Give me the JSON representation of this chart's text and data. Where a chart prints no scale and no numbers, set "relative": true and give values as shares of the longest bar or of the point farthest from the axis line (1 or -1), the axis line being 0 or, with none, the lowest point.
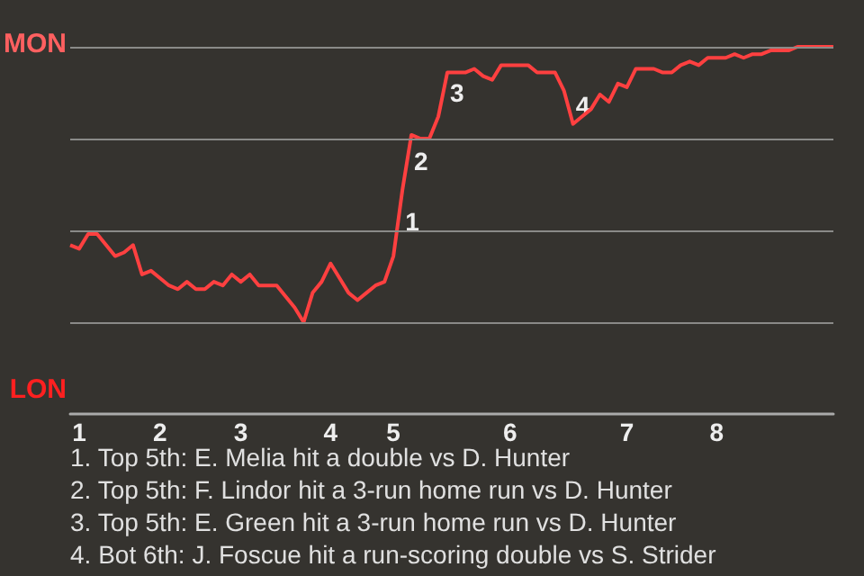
{
  "chart_data": {
    "type": "line",
    "categories": [
      null,
      "1",
      null,
      null,
      null,
      null,
      null,
      null,
      null,
      null,
      "2",
      null,
      null,
      null,
      null,
      null,
      null,
      null,
      null,
      "3",
      null,
      null,
      null,
      null,
      null,
      null,
      null,
      null,
      null,
      "4",
      null,
      null,
      null,
      null,
      null,
      null,
      "5",
      null,
      null,
      null,
      null,
      null,
      null,
      null,
      null,
      null,
      null,
      null,
      null,
      "6",
      null,
      null,
      null,
      null,
      null,
      null,
      null,
      null,
      null,
      null,
      null,
      null,
      "7",
      null,
      null,
      null,
      null,
      null,
      null,
      null,
      null,
      null,
      "8",
      null,
      null,
      null,
      null,
      null,
      null,
      null,
      null,
      null,
      null,
      null,
      null,
      null
    ],
    "relative": true,
    "series": [
      {
        "color": "#ff4040",
        "values": [
          0.46,
          0.45,
          0.49,
          0.49,
          0.46,
          0.43,
          0.44,
          0.46,
          0.38,
          0.39,
          0.37,
          0.35,
          0.34,
          0.36,
          0.34,
          0.34,
          0.36,
          0.35,
          0.38,
          0.36,
          0.38,
          0.35,
          0.35,
          0.35,
          0.32,
          0.29,
          0.25,
          0.33,
          0.36,
          0.41,
          0.37,
          0.33,
          0.31,
          0.33,
          0.35,
          0.36,
          0.43,
          0.61,
          0.76,
          0.75,
          0.75,
          0.81,
          0.93,
          0.93,
          0.93,
          0.94,
          0.92,
          0.91,
          0.95,
          0.95,
          0.95,
          0.95,
          0.93,
          0.93,
          0.93,
          0.88,
          0.79,
          0.81,
          0.83,
          0.87,
          0.85,
          0.9,
          0.89,
          0.94,
          0.94,
          0.94,
          0.93,
          0.93,
          0.95,
          0.96,
          0.95,
          0.97,
          0.97,
          0.97,
          0.98,
          0.97,
          0.98,
          0.98,
          0.99,
          0.99,
          0.99,
          1.0,
          1.0,
          1.0,
          1.0,
          1.0
        ]
      }
    ],
    "marker": "none",
    "line_style": "solid",
    "ref_lines": [
      {
        "axis": "y",
        "value": 0.25,
        "color": "#8a8a88"
      },
      {
        "axis": "y",
        "value": 0.5,
        "color": "#8a8a88"
      },
      {
        "axis": "y",
        "value": 0.75,
        "color": "#8a8a88"
      },
      {
        "axis": "y",
        "value": 1,
        "color": "#8a8a88"
      }
    ],
    "annotations": [
      "MON",
      "LON",
      "1",
      "2",
      "3",
      "4",
      "1. Top 5th: E. Melia hit a double vs D. Hunter",
      "2. Top 5th: F. Lindor hit a 3-run home run vs D. Hunter",
      "3. Top 5th: E. Green hit a 3-run home run vs D. Hunter",
      "4. Bot 6th: J. Foscue hit a run-scoring double vs S. Strider"
    ]
  }
}
